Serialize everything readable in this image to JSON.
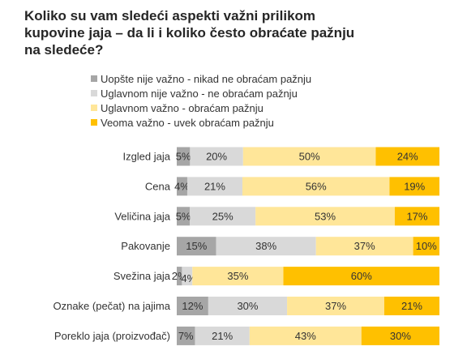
{
  "title": "Koliko su vam sledeći aspekti važni prilikom\nkupovine jaja – da li i koliko često obraćate pažnju\nna sledeće?",
  "chart_data": {
    "type": "bar",
    "orientation": "horizontal",
    "stacked": true,
    "normalized_percent": true,
    "grid": false,
    "legend_position": "top",
    "categories": [
      "Izgled jaja",
      "Cena",
      "Veličina jaja",
      "Pakovanje",
      "Svežina jaja",
      "Oznake (pečat) na jajima",
      "Poreklo jaja (proizvođač)"
    ],
    "series": [
      {
        "name": "Uopšte nije važno - nikad ne obraćam pažnju",
        "color": "#a6a6a6",
        "values": [
          5,
          4,
          5,
          15,
          2,
          12,
          7
        ]
      },
      {
        "name": "Uglavnom nije važno - ne obraćam pažnju",
        "color": "#d9d9d9",
        "values": [
          20,
          21,
          25,
          38,
          4,
          30,
          21
        ]
      },
      {
        "name": "Uglavnom važno - obraćam pažnju",
        "color": "#ffe699",
        "values": [
          50,
          56,
          53,
          37,
          35,
          37,
          43
        ]
      },
      {
        "name": "Veoma važno - uvek obraćam pažnju",
        "color": "#ffc000",
        "values": [
          24,
          19,
          17,
          10,
          60,
          21,
          30
        ]
      }
    ]
  }
}
